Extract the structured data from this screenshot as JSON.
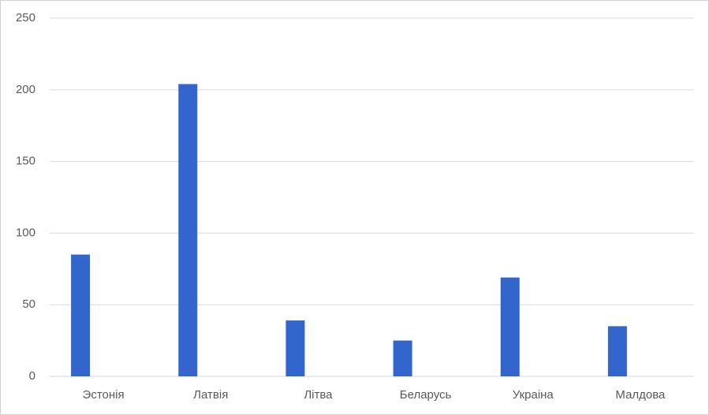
{
  "chart_data": {
    "type": "bar",
    "categories": [
      "Эстонія",
      "Латвія",
      "Літва",
      "Беларусь",
      "Украіна",
      "Малдова"
    ],
    "values": [
      85,
      204,
      39,
      25,
      69,
      35
    ],
    "color": "#3366cc",
    "ylim": [
      0,
      250
    ],
    "yticks": [
      0,
      50,
      100,
      150,
      200,
      250
    ],
    "grid": true
  }
}
